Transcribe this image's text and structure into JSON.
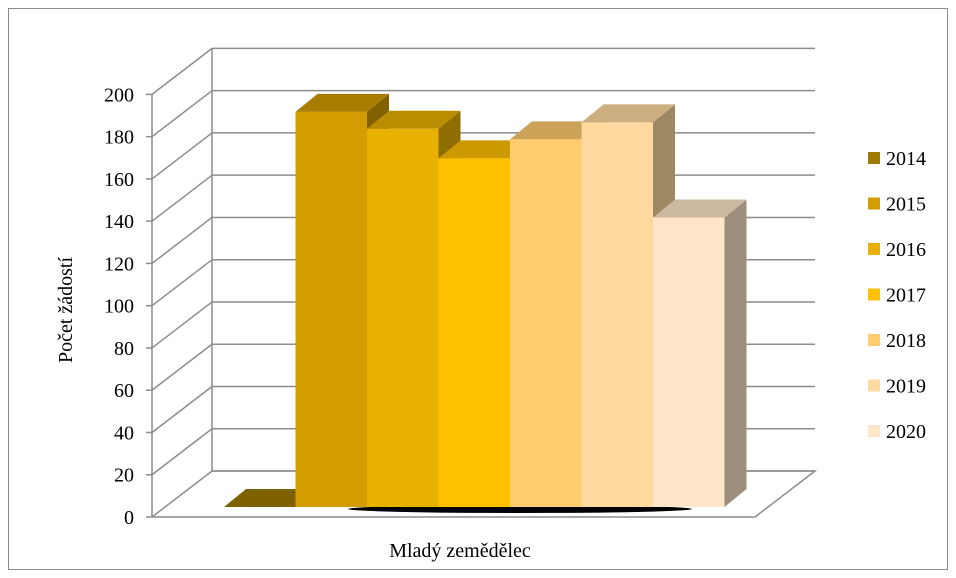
{
  "chart_data": {
    "type": "bar",
    "title": "",
    "xlabel": "Mladý zemědělec",
    "ylabel": "Počet žádostí",
    "categories": [
      "Mladý zemědělec"
    ],
    "ylim": [
      0,
      200
    ],
    "y_ticks": [
      0,
      20,
      40,
      60,
      80,
      100,
      120,
      140,
      160,
      180,
      200
    ],
    "grid": true,
    "legend_position": "right",
    "series": [
      {
        "name": "2014",
        "values": [
          0
        ],
        "color": "#9e7a00"
      },
      {
        "name": "2015",
        "values": [
          187
        ],
        "color": "#d39c00"
      },
      {
        "name": "2016",
        "values": [
          179
        ],
        "color": "#e8b000"
      },
      {
        "name": "2017",
        "values": [
          165
        ],
        "color": "#ffc000"
      },
      {
        "name": "2018",
        "values": [
          174
        ],
        "color": "#ffcc6e"
      },
      {
        "name": "2019",
        "values": [
          182
        ],
        "color": "#ffd9a0"
      },
      {
        "name": "2020",
        "values": [
          137
        ],
        "color": "#ffe6c8"
      }
    ]
  }
}
